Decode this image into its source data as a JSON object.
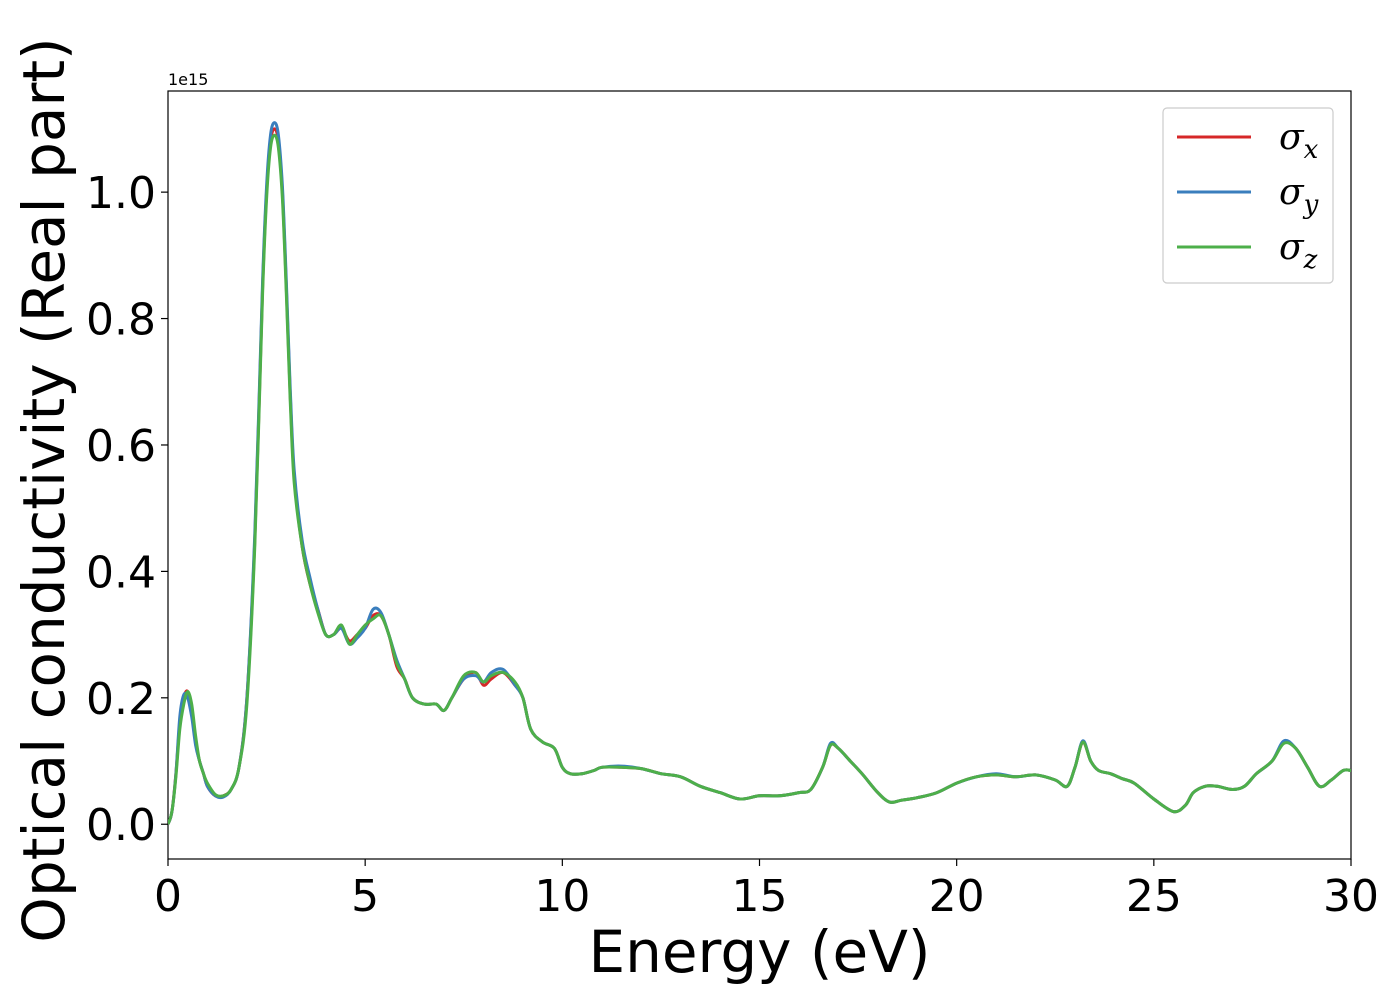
{
  "chart_data": {
    "type": "line",
    "xlabel": "Energy (eV)",
    "ylabel": "Optical conductivity (Real part)",
    "y_offset_label": "1e15",
    "xlim": [
      0,
      30
    ],
    "ylim": [
      -0.055,
      1.16
    ],
    "x_ticks": [
      0,
      5,
      10,
      15,
      20,
      25,
      30
    ],
    "x_tick_labels": [
      "0",
      "5",
      "10",
      "15",
      "20",
      "25",
      "30"
    ],
    "y_ticks": [
      0.0,
      0.2,
      0.4,
      0.6,
      0.8,
      1.0
    ],
    "y_tick_labels": [
      "0.0",
      "0.2",
      "0.4",
      "0.6",
      "0.8",
      "1.0"
    ],
    "grid": false,
    "legend_position": "top-right",
    "series": [
      {
        "name": "σ",
        "subscript": "x",
        "color": "#d62728",
        "x": [
          0,
          0.1,
          0.2,
          0.3,
          0.4,
          0.5,
          0.6,
          0.7,
          0.8,
          0.9,
          1.0,
          1.2,
          1.4,
          1.6,
          1.8,
          2.0,
          2.2,
          2.4,
          2.5,
          2.6,
          2.7,
          2.8,
          2.9,
          3.0,
          3.1,
          3.2,
          3.4,
          3.6,
          3.8,
          4.0,
          4.2,
          4.4,
          4.6,
          4.8,
          5.0,
          5.2,
          5.4,
          5.6,
          5.8,
          6.0,
          6.2,
          6.5,
          6.8,
          7.0,
          7.2,
          7.5,
          7.8,
          8.0,
          8.2,
          8.5,
          8.8,
          9.0,
          9.2,
          9.5,
          9.8,
          10.0,
          10.2,
          10.5,
          10.8,
          11.0,
          11.5,
          12.0,
          12.5,
          13.0,
          13.5,
          14.0,
          14.5,
          15.0,
          15.5,
          16.0,
          16.3,
          16.6,
          16.8,
          17.0,
          17.3,
          17.6,
          18.0,
          18.3,
          18.6,
          19.0,
          19.5,
          20.0,
          20.5,
          21.0,
          21.5,
          22.0,
          22.5,
          22.8,
          23.0,
          23.2,
          23.4,
          23.6,
          23.9,
          24.2,
          24.5,
          25.0,
          25.5,
          25.8,
          26.0,
          26.3,
          26.6,
          27.0,
          27.3,
          27.6,
          28.0,
          28.3,
          28.6,
          28.9,
          29.2,
          29.5,
          29.8,
          30.0
        ],
        "values": [
          0.0,
          0.02,
          0.08,
          0.16,
          0.2,
          0.21,
          0.18,
          0.13,
          0.1,
          0.08,
          0.06,
          0.045,
          0.045,
          0.055,
          0.09,
          0.2,
          0.45,
          0.85,
          1.0,
          1.08,
          1.1,
          1.08,
          1.0,
          0.85,
          0.68,
          0.55,
          0.44,
          0.38,
          0.34,
          0.3,
          0.3,
          0.31,
          0.29,
          0.3,
          0.31,
          0.33,
          0.33,
          0.3,
          0.25,
          0.23,
          0.2,
          0.19,
          0.19,
          0.18,
          0.2,
          0.23,
          0.24,
          0.22,
          0.23,
          0.24,
          0.22,
          0.2,
          0.15,
          0.13,
          0.12,
          0.09,
          0.08,
          0.08,
          0.085,
          0.09,
          0.09,
          0.088,
          0.08,
          0.075,
          0.06,
          0.05,
          0.04,
          0.045,
          0.045,
          0.05,
          0.055,
          0.09,
          0.125,
          0.12,
          0.1,
          0.08,
          0.05,
          0.035,
          0.038,
          0.042,
          0.05,
          0.065,
          0.075,
          0.078,
          0.075,
          0.078,
          0.07,
          0.06,
          0.09,
          0.13,
          0.1,
          0.085,
          0.08,
          0.072,
          0.065,
          0.04,
          0.02,
          0.03,
          0.05,
          0.06,
          0.06,
          0.055,
          0.06,
          0.08,
          0.1,
          0.13,
          0.12,
          0.09,
          0.06,
          0.07,
          0.085,
          0.085
        ]
      },
      {
        "name": "σ",
        "subscript": "y",
        "color": "#3a7ebd",
        "x": [
          0,
          0.1,
          0.2,
          0.3,
          0.4,
          0.5,
          0.6,
          0.7,
          0.8,
          0.9,
          1.0,
          1.2,
          1.4,
          1.6,
          1.8,
          2.0,
          2.2,
          2.4,
          2.5,
          2.6,
          2.7,
          2.8,
          2.9,
          3.0,
          3.1,
          3.2,
          3.4,
          3.6,
          3.8,
          4.0,
          4.2,
          4.4,
          4.6,
          4.8,
          5.0,
          5.2,
          5.4,
          5.6,
          5.8,
          6.0,
          6.2,
          6.5,
          6.8,
          7.0,
          7.2,
          7.5,
          7.8,
          8.0,
          8.2,
          8.5,
          8.8,
          9.0,
          9.2,
          9.5,
          9.8,
          10.0,
          10.2,
          10.5,
          10.8,
          11.0,
          11.5,
          12.0,
          12.5,
          13.0,
          13.5,
          14.0,
          14.5,
          15.0,
          15.5,
          16.0,
          16.3,
          16.6,
          16.8,
          17.0,
          17.3,
          17.6,
          18.0,
          18.3,
          18.6,
          19.0,
          19.5,
          20.0,
          20.5,
          21.0,
          21.5,
          22.0,
          22.5,
          22.8,
          23.0,
          23.2,
          23.4,
          23.6,
          23.9,
          24.2,
          24.5,
          25.0,
          25.5,
          25.8,
          26.0,
          26.3,
          26.6,
          27.0,
          27.3,
          27.6,
          28.0,
          28.3,
          28.6,
          28.9,
          29.2,
          29.5,
          29.8,
          30.0
        ],
        "values": [
          0.0,
          0.02,
          0.08,
          0.17,
          0.205,
          0.2,
          0.17,
          0.125,
          0.1,
          0.08,
          0.06,
          0.045,
          0.043,
          0.055,
          0.09,
          0.2,
          0.46,
          0.86,
          1.01,
          1.09,
          1.11,
          1.09,
          1.01,
          0.86,
          0.69,
          0.56,
          0.45,
          0.39,
          0.34,
          0.3,
          0.3,
          0.31,
          0.285,
          0.295,
          0.31,
          0.34,
          0.335,
          0.3,
          0.26,
          0.23,
          0.2,
          0.19,
          0.19,
          0.18,
          0.2,
          0.23,
          0.235,
          0.225,
          0.24,
          0.245,
          0.22,
          0.2,
          0.15,
          0.13,
          0.12,
          0.09,
          0.08,
          0.08,
          0.085,
          0.09,
          0.092,
          0.088,
          0.08,
          0.075,
          0.06,
          0.05,
          0.04,
          0.045,
          0.045,
          0.05,
          0.055,
          0.09,
          0.128,
          0.12,
          0.1,
          0.08,
          0.05,
          0.035,
          0.038,
          0.042,
          0.05,
          0.065,
          0.075,
          0.08,
          0.075,
          0.078,
          0.07,
          0.06,
          0.09,
          0.132,
          0.1,
          0.085,
          0.08,
          0.072,
          0.065,
          0.04,
          0.02,
          0.03,
          0.05,
          0.06,
          0.06,
          0.055,
          0.06,
          0.08,
          0.1,
          0.132,
          0.12,
          0.09,
          0.06,
          0.07,
          0.085,
          0.085
        ]
      },
      {
        "name": "σ",
        "subscript": "z",
        "color": "#4daf4a",
        "x": [
          0,
          0.1,
          0.2,
          0.3,
          0.4,
          0.5,
          0.6,
          0.7,
          0.8,
          0.9,
          1.0,
          1.2,
          1.4,
          1.6,
          1.8,
          2.0,
          2.2,
          2.4,
          2.5,
          2.6,
          2.7,
          2.8,
          2.9,
          3.0,
          3.1,
          3.2,
          3.4,
          3.6,
          3.8,
          4.0,
          4.2,
          4.4,
          4.6,
          4.8,
          5.0,
          5.2,
          5.4,
          5.6,
          5.8,
          6.0,
          6.2,
          6.5,
          6.8,
          7.0,
          7.2,
          7.5,
          7.8,
          8.0,
          8.2,
          8.5,
          8.8,
          9.0,
          9.2,
          9.5,
          9.8,
          10.0,
          10.2,
          10.5,
          10.8,
          11.0,
          11.5,
          12.0,
          12.5,
          13.0,
          13.5,
          14.0,
          14.5,
          15.0,
          15.5,
          16.0,
          16.3,
          16.6,
          16.8,
          17.0,
          17.3,
          17.6,
          18.0,
          18.3,
          18.6,
          19.0,
          19.5,
          20.0,
          20.5,
          21.0,
          21.5,
          22.0,
          22.5,
          22.8,
          23.0,
          23.2,
          23.4,
          23.6,
          23.9,
          24.2,
          24.5,
          25.0,
          25.5,
          25.8,
          26.0,
          26.3,
          26.6,
          27.0,
          27.3,
          27.6,
          28.0,
          28.3,
          28.6,
          28.9,
          29.2,
          29.5,
          29.8,
          30.0
        ],
        "values": [
          0.0,
          0.02,
          0.075,
          0.15,
          0.19,
          0.21,
          0.19,
          0.14,
          0.1,
          0.08,
          0.065,
          0.047,
          0.045,
          0.055,
          0.09,
          0.19,
          0.44,
          0.84,
          0.99,
          1.07,
          1.09,
          1.07,
          0.99,
          0.84,
          0.67,
          0.54,
          0.44,
          0.38,
          0.335,
          0.3,
          0.3,
          0.315,
          0.285,
          0.3,
          0.315,
          0.325,
          0.33,
          0.3,
          0.255,
          0.23,
          0.2,
          0.19,
          0.19,
          0.18,
          0.2,
          0.235,
          0.24,
          0.225,
          0.235,
          0.24,
          0.225,
          0.2,
          0.15,
          0.13,
          0.12,
          0.09,
          0.08,
          0.08,
          0.085,
          0.09,
          0.09,
          0.088,
          0.08,
          0.075,
          0.06,
          0.05,
          0.04,
          0.045,
          0.045,
          0.05,
          0.055,
          0.09,
          0.125,
          0.12,
          0.1,
          0.08,
          0.05,
          0.035,
          0.038,
          0.042,
          0.05,
          0.065,
          0.075,
          0.078,
          0.075,
          0.078,
          0.07,
          0.06,
          0.09,
          0.13,
          0.1,
          0.085,
          0.08,
          0.072,
          0.065,
          0.04,
          0.02,
          0.03,
          0.05,
          0.06,
          0.06,
          0.055,
          0.06,
          0.08,
          0.1,
          0.128,
          0.12,
          0.09,
          0.06,
          0.07,
          0.085,
          0.085
        ]
      }
    ]
  }
}
